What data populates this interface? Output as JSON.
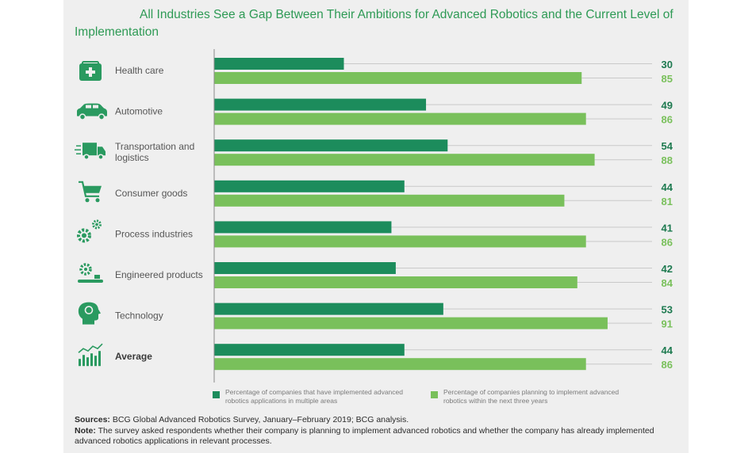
{
  "title": "All Industries See a Gap Between Their Ambitions for Advanced Robotics and the Current Level of Implementation",
  "colors": {
    "implemented": "#1c8c5c",
    "planning": "#79c05b",
    "implemented_label": "#1e7a50",
    "planning_label": "#79c05b",
    "icon": "#2a9a60",
    "title": "#2e9a55"
  },
  "chart_data": {
    "type": "bar",
    "orientation": "horizontal",
    "categories": [
      "Health care",
      "Automotive",
      "Transportation and logistics",
      "Consumer goods",
      "Process industries",
      "Engineered products",
      "Technology",
      "Average"
    ],
    "category_icons": [
      "medical-kit-icon",
      "car-icon",
      "truck-icon",
      "shopping-cart-icon",
      "gears-icon",
      "production-line-icon",
      "brain-head-icon",
      "bar-chart-icon"
    ],
    "series": [
      {
        "name": "Percentage of companies that have implemented advanced robotics applications in multiple areas",
        "values": [
          30,
          49,
          54,
          44,
          41,
          42,
          53,
          44
        ]
      },
      {
        "name": "Percentage of companies planning to implement advanced robotics within the next three years",
        "values": [
          85,
          86,
          88,
          81,
          86,
          84,
          91,
          86
        ]
      }
    ],
    "xlim": [
      0,
      100
    ],
    "grid": false,
    "legend": "bottom"
  },
  "footer": {
    "sources_label": "Sources:",
    "sources_text": " BCG Global Advanced Robotics Survey, January–February 2019; BCG analysis.",
    "note_label": "Note:",
    "note_text": " The survey asked respondents whether their company is planning to implement advanced robotics and whether the company has already implemented advanced robotics applications in relevant processes."
  }
}
